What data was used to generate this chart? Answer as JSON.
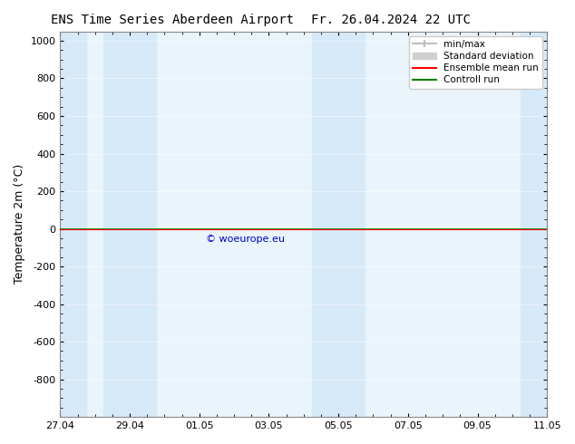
{
  "title_left": "ENS Time Series Aberdeen Airport",
  "title_right": "Fr. 26.04.2024 22 UTC",
  "ylabel": "Temperature 2m (°C)",
  "ylim": [
    -1000,
    1050
  ],
  "yticks": [
    -800,
    -600,
    -400,
    -200,
    0,
    200,
    400,
    600,
    800,
    1000
  ],
  "xlim_start": "2024-04-27",
  "xlim_end": "2024-05-11",
  "xtick_labels": [
    "27.04",
    "29.04",
    "01.05",
    "03.05",
    "05.05",
    "07.05",
    "09.05",
    "11.05"
  ],
  "xtick_positions": [
    0,
    2,
    4,
    6,
    8,
    10,
    12,
    14
  ],
  "shaded_columns": [
    0,
    2,
    8,
    14
  ],
  "shaded_color": "#d6e9f8",
  "bg_color": "#ffffff",
  "plot_bg_color": "#eaf4fb",
  "line_y": 0.0,
  "line_color_control": "#008000",
  "line_color_ensemble": "#ff0000",
  "watermark": "© woeurope.eu",
  "watermark_color": "#0000cc",
  "legend_items": [
    "min/max",
    "Standard deviation",
    "Ensemble mean run",
    "Controll run"
  ],
  "legend_colors": [
    "#808080",
    "#b0b0b0",
    "#ff0000",
    "#008000"
  ],
  "minmax_color": "#c0c0c0",
  "stddev_color": "#d0d0d0"
}
